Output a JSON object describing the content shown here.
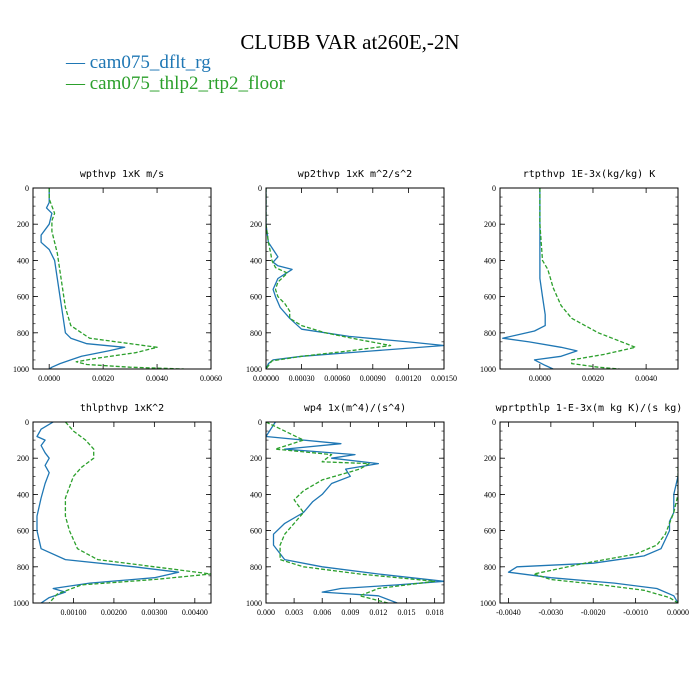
{
  "title": "CLUBB VAR at260E,-2N",
  "legend": [
    {
      "label": "— cam075_dflt_rg",
      "color": "#1f77b4"
    },
    {
      "label": "— cam075_thlp2_rtp2_floor",
      "color": "#2ca02c"
    }
  ],
  "chart_data": [
    {
      "type": "line",
      "title": "wpthvp  1xK m/s",
      "xlim": [
        -0.0006,
        0.006
      ],
      "ylim": [
        1000,
        0
      ],
      "xticks": [
        {
          "v": 0,
          "l": "0.0000"
        },
        {
          "v": 0.002,
          "l": "0.0020"
        },
        {
          "v": 0.004,
          "l": "0.0040"
        },
        {
          "v": 0.006,
          "l": "0.0060"
        }
      ],
      "yticks": [
        0,
        200,
        400,
        600,
        800,
        1000
      ],
      "series": [
        {
          "name": "cam075_dflt_rg",
          "color": "#1f77b4",
          "dash": "",
          "x": [
            0.0,
            0.0,
            0.0,
            -0.0001,
            0.0001,
            0.0,
            -0.0003,
            -0.0003,
            0.0,
            0.0002,
            0.0003,
            0.0004,
            0.0005,
            0.0006,
            0.0008,
            0.0014,
            0.0028,
            0.0022,
            0.0012,
            0.0008,
            0.0004,
            0.0001,
            0.0
          ],
          "y": [
            0,
            40,
            80,
            110,
            140,
            200,
            260,
            300,
            340,
            400,
            500,
            600,
            700,
            800,
            830,
            860,
            880,
            900,
            930,
            950,
            970,
            990,
            1000
          ]
        },
        {
          "name": "cam075_thlp2_rtp2_floor",
          "color": "#2ca02c",
          "dash": "4,2",
          "x": [
            0.0,
            0.0,
            0.0001,
            0.0002,
            0.0001,
            0.0001,
            0.0002,
            0.0003,
            0.0004,
            0.0005,
            0.0006,
            0.0008,
            0.0015,
            0.004,
            0.0032,
            0.0018,
            0.001,
            0.0014,
            0.003,
            0.005
          ],
          "y": [
            0,
            60,
            100,
            140,
            180,
            240,
            300,
            360,
            460,
            560,
            660,
            760,
            830,
            880,
            910,
            940,
            960,
            975,
            990,
            1000
          ]
        }
      ]
    },
    {
      "type": "line",
      "title": "wp2thvp  1xK m^2/s^2",
      "xlim": [
        0,
        0.0015
      ],
      "ylim": [
        1000,
        0
      ],
      "xticks": [
        {
          "v": 0,
          "l": "0.00000"
        },
        {
          "v": 0.0003,
          "l": "0.00030"
        },
        {
          "v": 0.0006,
          "l": "0.00060"
        },
        {
          "v": 0.0009,
          "l": "0.00090"
        },
        {
          "v": 0.0012,
          "l": "0.00120"
        },
        {
          "v": 0.0015,
          "l": "0.00150"
        }
      ],
      "yticks": [
        0,
        200,
        400,
        600,
        800,
        1000
      ],
      "series": [
        {
          "name": "cam075_dflt_rg",
          "color": "#1f77b4",
          "dash": "",
          "x": [
            0.0,
            0.0,
            2e-05,
            6e-05,
            0.0001,
            6e-05,
            0.0001,
            0.00022,
            0.0001,
            6e-05,
            8e-05,
            0.00012,
            0.0002,
            0.0003,
            0.0007,
            0.0012,
            0.0015,
            0.0009,
            0.0003,
            6e-05,
            2e-05,
            0.0
          ],
          "y": [
            0,
            200,
            300,
            340,
            380,
            410,
            430,
            450,
            500,
            560,
            600,
            660,
            720,
            780,
            820,
            850,
            870,
            900,
            930,
            950,
            970,
            1000
          ]
        },
        {
          "name": "cam075_thlp2_rtp2_floor",
          "color": "#2ca02c",
          "dash": "4,2",
          "x": [
            0.0,
            0.0,
            2e-05,
            4e-05,
            5e-05,
            8e-05,
            0.00018,
            0.0001,
            8e-05,
            0.0001,
            0.00016,
            0.0002,
            0.0002,
            0.0003,
            0.0005,
            0.0008,
            0.00105,
            0.0007,
            0.0003,
            5e-05,
            0.0
          ],
          "y": [
            0,
            200,
            300,
            360,
            400,
            440,
            470,
            520,
            560,
            600,
            640,
            680,
            720,
            760,
            800,
            840,
            870,
            900,
            930,
            955,
            1000
          ]
        }
      ]
    },
    {
      "type": "line",
      "title": "rtpthvp  1E-3x(kg/kg) K",
      "xlim": [
        -0.0015,
        0.0052
      ],
      "ylim": [
        1000,
        0
      ],
      "xticks": [
        {
          "v": 0,
          "l": "0.0000"
        },
        {
          "v": 0.002,
          "l": "0.0020"
        },
        {
          "v": 0.004,
          "l": "0.0040"
        }
      ],
      "yticks": [
        0,
        200,
        400,
        600,
        800,
        1000
      ],
      "series": [
        {
          "name": "cam075_dflt_rg",
          "color": "#1f77b4",
          "dash": "",
          "x": [
            0.0,
            0.0,
            0.0,
            0.0,
            0.0001,
            0.0002,
            0.0002,
            -0.0002,
            -0.0008,
            -0.0014,
            -0.0004,
            0.0008,
            0.0014,
            0.0008,
            -0.0002,
            0.0002,
            0.0005
          ],
          "y": [
            0,
            200,
            400,
            500,
            600,
            700,
            760,
            790,
            810,
            830,
            850,
            880,
            900,
            930,
            950,
            980,
            1000
          ]
        },
        {
          "name": "cam075_thlp2_rtp2_floor",
          "color": "#2ca02c",
          "dash": "4,2",
          "x": [
            0.0,
            0.0,
            0.0001,
            0.0003,
            0.0004,
            0.0005,
            0.0008,
            0.0012,
            0.0022,
            0.0036,
            0.0024,
            0.0012,
            0.0012,
            0.0022,
            0.003
          ],
          "y": [
            0,
            200,
            400,
            450,
            500,
            550,
            650,
            720,
            800,
            880,
            920,
            950,
            970,
            990,
            1000
          ]
        }
      ]
    },
    {
      "type": "line",
      "title": "thlpthvp  1xK^2",
      "xlim": [
        0,
        0.0044
      ],
      "ylim": [
        1000,
        0
      ],
      "xticks": [
        {
          "v": 0.001,
          "l": "0.00100"
        },
        {
          "v": 0.002,
          "l": "0.00200"
        },
        {
          "v": 0.003,
          "l": "0.00300"
        },
        {
          "v": 0.004,
          "l": "0.00400"
        }
      ],
      "yticks": [
        0,
        200,
        400,
        600,
        800,
        1000
      ],
      "series": [
        {
          "name": "cam075_dflt_rg",
          "color": "#1f77b4",
          "dash": "",
          "x": [
            0.0005,
            0.0002,
            0.0001,
            0.0003,
            0.0002,
            0.0003,
            0.0004,
            0.0003,
            0.0004,
            0.0003,
            0.0002,
            0.0001,
            0.0001,
            0.0002,
            0.0008,
            0.0025,
            0.0036,
            0.003,
            0.0014,
            0.0005,
            0.0008,
            0.0004,
            0.0002
          ],
          "y": [
            0,
            40,
            80,
            100,
            130,
            170,
            200,
            240,
            280,
            340,
            420,
            520,
            600,
            700,
            760,
            800,
            830,
            860,
            890,
            920,
            940,
            970,
            1000
          ]
        },
        {
          "name": "cam075_thlp2_rtp2_floor",
          "color": "#2ca02c",
          "dash": "4,2",
          "x": [
            0.0008,
            0.001,
            0.0013,
            0.0015,
            0.0015,
            0.0012,
            0.001,
            0.0009,
            0.0008,
            0.0008,
            0.0009,
            0.0011,
            0.0016,
            0.003,
            0.0044,
            0.003,
            0.0012,
            0.0006,
            0.0004
          ],
          "y": [
            0,
            50,
            100,
            150,
            200,
            250,
            300,
            360,
            420,
            520,
            600,
            700,
            760,
            800,
            840,
            870,
            900,
            950,
            1000
          ]
        }
      ]
    },
    {
      "type": "line",
      "title": "wp4  1x(m^4)/(s^4)",
      "xlim": [
        0,
        0.019
      ],
      "ylim": [
        1000,
        0
      ],
      "xticks": [
        {
          "v": 0,
          "l": "0.000"
        },
        {
          "v": 0.003,
          "l": "0.003"
        },
        {
          "v": 0.006,
          "l": "0.006"
        },
        {
          "v": 0.009,
          "l": "0.009"
        },
        {
          "v": 0.012,
          "l": "0.012"
        },
        {
          "v": 0.015,
          "l": "0.015"
        },
        {
          "v": 0.018,
          "l": "0.018"
        }
      ],
      "yticks": [
        0,
        200,
        400,
        600,
        800,
        1000
      ],
      "series": [
        {
          "name": "cam075_dflt_rg",
          "color": "#1f77b4",
          "dash": "",
          "x": [
            0.001,
            0.0,
            0.008,
            0.002,
            0.0095,
            0.007,
            0.012,
            0.0085,
            0.009,
            0.007,
            0.006,
            0.005,
            0.004,
            0.002,
            0.0008,
            0.0008,
            0.002,
            0.006,
            0.012,
            0.019,
            0.014,
            0.008,
            0.006,
            0.012,
            0.014
          ],
          "y": [
            0,
            80,
            120,
            150,
            180,
            200,
            230,
            260,
            300,
            340,
            400,
            440,
            500,
            560,
            620,
            680,
            760,
            800,
            840,
            880,
            900,
            920,
            940,
            960,
            1000
          ]
        },
        {
          "name": "cam075_thlp2_rtp2_floor",
          "color": "#2ca02c",
          "dash": "4,2",
          "x": [
            0.0,
            0.004,
            0.001,
            0.007,
            0.006,
            0.011,
            0.01,
            0.006,
            0.004,
            0.003,
            0.004,
            0.003,
            0.002,
            0.0015,
            0.0015,
            0.004,
            0.01,
            0.018,
            0.012,
            0.01,
            0.013
          ],
          "y": [
            0,
            100,
            150,
            180,
            220,
            230,
            260,
            320,
            380,
            430,
            500,
            560,
            620,
            680,
            760,
            800,
            840,
            880,
            920,
            960,
            1000
          ]
        }
      ]
    },
    {
      "type": "line",
      "title": "wprtpthlp  1-E-3x(m kg K)/(s kg)",
      "xlim": [
        -0.0042,
        0.0
      ],
      "ylim": [
        1000,
        0
      ],
      "xticks": [
        {
          "v": -0.004,
          "l": "-0.0040"
        },
        {
          "v": -0.003,
          "l": "-0.0030"
        },
        {
          "v": -0.002,
          "l": "-0.0020"
        },
        {
          "v": -0.001,
          "l": "-0.0010"
        },
        {
          "v": 0,
          "l": "0.0000"
        }
      ],
      "yticks": [
        0,
        200,
        400,
        600,
        800,
        1000
      ],
      "series": [
        {
          "name": "cam075_dflt_rg",
          "color": "#1f77b4",
          "dash": "",
          "x": [
            0.0,
            -0.0001,
            -0.0001,
            -0.0002,
            -0.0002,
            -0.0003,
            -0.0004,
            -0.0008,
            -0.002,
            -0.0038,
            -0.004,
            -0.003,
            -0.0015,
            -0.0005,
            -0.0001,
            0.0
          ],
          "y": [
            300,
            400,
            500,
            550,
            600,
            650,
            700,
            740,
            780,
            800,
            830,
            860,
            890,
            920,
            960,
            1000
          ]
        },
        {
          "name": "cam075_thlp2_rtp2_floor",
          "color": "#2ca02c",
          "dash": "4,2",
          "x": [
            0.0,
            0.0,
            -0.0001,
            -0.0002,
            -0.0003,
            -0.0005,
            -0.001,
            -0.0022,
            -0.0034,
            -0.003,
            -0.0018,
            -0.0008,
            -0.0002,
            0.0
          ],
          "y": [
            250,
            400,
            500,
            560,
            620,
            680,
            730,
            780,
            840,
            870,
            900,
            930,
            970,
            1000
          ]
        }
      ]
    }
  ]
}
